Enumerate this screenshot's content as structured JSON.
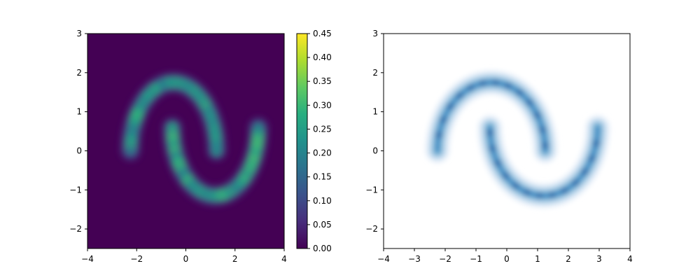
{
  "chart_data": [
    {
      "type": "heatmap",
      "title": "",
      "xlabel": "",
      "ylabel": "",
      "xlim": [
        -4,
        4
      ],
      "ylim": [
        -2.5,
        3
      ],
      "x_ticks": [
        -4,
        -2,
        0,
        2,
        4
      ],
      "x_tick_labels": [
        "−4",
        "−2",
        "0",
        "2",
        "4"
      ],
      "y_ticks": [
        -2,
        -1,
        0,
        1,
        2,
        3
      ],
      "y_tick_labels": [
        "−2",
        "−1",
        "0",
        "1",
        "2",
        "3"
      ],
      "colormap": "viridis",
      "background_color": "#440154",
      "colorbar": {
        "range": [
          0,
          0.45
        ],
        "ticks": [
          0,
          0.05,
          0.1,
          0.15,
          0.2,
          0.25,
          0.3,
          0.35,
          0.4,
          0.45
        ],
        "tick_labels": [
          "0.00",
          "0.05",
          "0.10",
          "0.15",
          "0.20",
          "0.25",
          "0.30",
          "0.35",
          "0.40",
          "0.45"
        ]
      },
      "description_of_density": "two interleaving half-moons",
      "moons": [
        {
          "center": [
            -0.5,
            0.0
          ],
          "radius": 1.75,
          "angle_range_deg": [
            0,
            180
          ],
          "peak_density": 0.3
        },
        {
          "center": [
            1.2,
            0.6
          ],
          "radius": 1.75,
          "angle_range_deg": [
            180,
            360
          ],
          "peak_density": 0.33
        }
      ]
    },
    {
      "type": "heatmap",
      "title": "",
      "xlabel": "",
      "ylabel": "",
      "xlim": [
        -4,
        4
      ],
      "ylim": [
        -2.5,
        3
      ],
      "x_ticks": [
        -4,
        -3,
        -2,
        -1,
        0,
        1,
        2,
        3,
        4
      ],
      "x_tick_labels": [
        "−4",
        "−3",
        "−2",
        "−1",
        "0",
        "1",
        "2",
        "3",
        "4"
      ],
      "y_ticks": [
        -2,
        -1,
        0,
        1,
        2,
        3
      ],
      "y_tick_labels": [
        "−2",
        "−1",
        "0",
        "1",
        "2",
        "3"
      ],
      "colormap": "Blues",
      "style": "filled density contours",
      "moons": [
        {
          "center": [
            -0.5,
            0.0
          ],
          "radius": 1.75,
          "angle_range_deg": [
            0,
            180
          ]
        },
        {
          "center": [
            1.2,
            0.6
          ],
          "radius": 1.75,
          "angle_range_deg": [
            180,
            360
          ]
        }
      ]
    }
  ]
}
